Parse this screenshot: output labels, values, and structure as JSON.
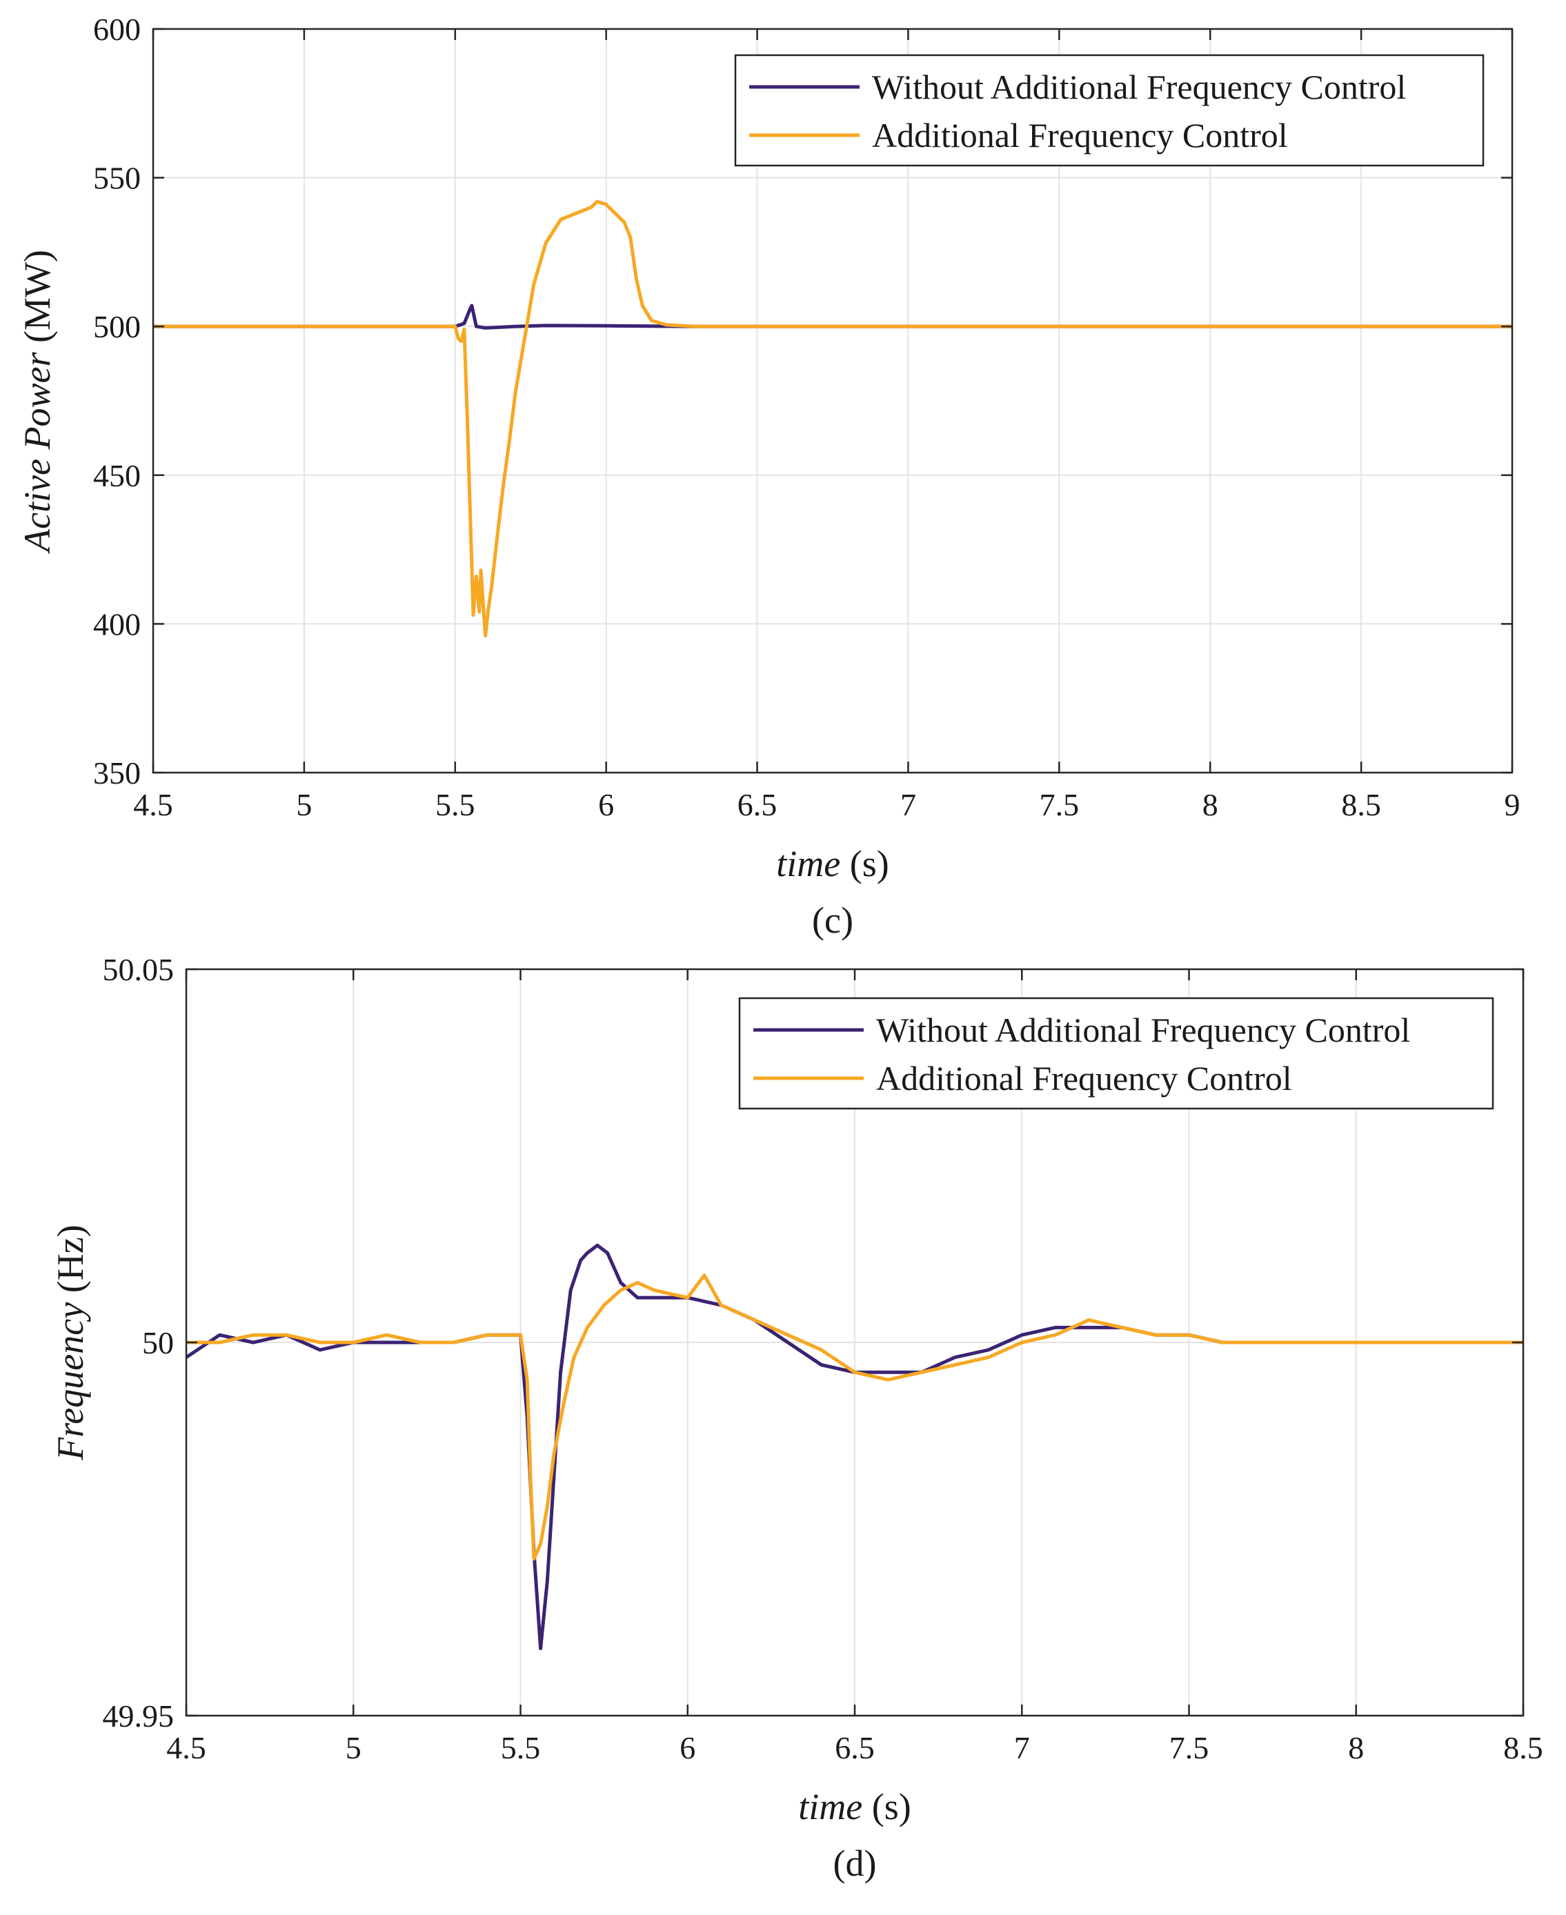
{
  "colors": {
    "series_without": "#3b2373",
    "series_with": "#f7a823",
    "axes": "#262626",
    "grid": "#e3e3e3"
  },
  "chart_data": [
    {
      "type": "line",
      "xlabel_italic": "time",
      "xlabel_unit": "(s)",
      "ylabel_italic": "Active Power",
      "ylabel_unit": "(MW)",
      "caption": "(c)",
      "xlim": [
        4.5,
        9
      ],
      "ylim": [
        350,
        600
      ],
      "xticks": [
        4.5,
        5,
        5.5,
        6,
        6.5,
        7,
        7.5,
        8,
        8.5,
        9
      ],
      "xtick_labels": [
        "4.5",
        "5",
        "5.5",
        "6",
        "6.5",
        "7",
        "7.5",
        "8",
        "8.5",
        "9"
      ],
      "yticks": [
        350,
        400,
        450,
        500,
        550,
        600
      ],
      "ytick_labels": [
        "350",
        "400",
        "450",
        "500",
        "550",
        "600"
      ],
      "grid": true,
      "legend_position": "top-right",
      "series": [
        {
          "name": "Without Additional Frequency Control",
          "color_key": "series_without",
          "x": [
            4.5,
            5.0,
            5.5,
            5.53,
            5.55,
            5.555,
            5.57,
            5.6,
            5.7,
            5.8,
            6.0,
            6.3,
            7.0,
            8.0,
            9.0
          ],
          "y": [
            500,
            500,
            500,
            501,
            506,
            507,
            500,
            499.5,
            500,
            500.3,
            500.2,
            500,
            500,
            500,
            500
          ]
        },
        {
          "name": "Additional Frequency Control",
          "color_key": "series_with",
          "x": [
            4.5,
            5.0,
            5.5,
            5.51,
            5.52,
            5.53,
            5.54,
            5.56,
            5.57,
            5.58,
            5.585,
            5.6,
            5.61,
            5.62,
            5.64,
            5.66,
            5.68,
            5.7,
            5.73,
            5.76,
            5.8,
            5.85,
            5.9,
            5.95,
            5.97,
            6.0,
            6.03,
            6.06,
            6.08,
            6.1,
            6.12,
            6.15,
            6.2,
            6.3,
            7.0,
            8.0,
            9.0
          ],
          "y": [
            500,
            500,
            500,
            496,
            495,
            499,
            470,
            403,
            416,
            404,
            418,
            396,
            405,
            412,
            430,
            447,
            462,
            478,
            496,
            514,
            528,
            536,
            538,
            540,
            542,
            541,
            538,
            535,
            530,
            516,
            507,
            502,
            500.5,
            500,
            500,
            500,
            500
          ]
        }
      ]
    },
    {
      "type": "line",
      "xlabel_italic": "time",
      "xlabel_unit": "(s)",
      "ylabel_italic": "Frequency",
      "ylabel_unit": "(Hz)",
      "caption": "(d)",
      "xlim": [
        4.5,
        8.5
      ],
      "ylim": [
        49.95,
        50.05
      ],
      "xticks": [
        4.5,
        5,
        5.5,
        6,
        6.5,
        7,
        7.5,
        8,
        8.5
      ],
      "xtick_labels": [
        "4.5",
        "5",
        "5.5",
        "6",
        "6.5",
        "7",
        "7.5",
        "8",
        "8.5"
      ],
      "yticks": [
        49.95,
        50,
        50.05
      ],
      "ytick_labels": [
        "49.95",
        "50",
        "50.05"
      ],
      "grid": true,
      "legend_position": "top-right",
      "series": [
        {
          "name": "Without Additional Frequency Control",
          "color_key": "series_without",
          "x": [
            4.5,
            4.6,
            4.7,
            4.8,
            4.9,
            5.0,
            5.1,
            5.2,
            5.3,
            5.4,
            5.5,
            5.52,
            5.54,
            5.56,
            5.58,
            5.6,
            5.62,
            5.65,
            5.68,
            5.7,
            5.73,
            5.76,
            5.8,
            5.85,
            5.9,
            6.0,
            6.1,
            6.2,
            6.3,
            6.4,
            6.5,
            6.6,
            6.7,
            6.8,
            6.9,
            7.0,
            7.1,
            7.2,
            7.3,
            7.4,
            7.5,
            7.6,
            7.8,
            8.0,
            8.2,
            8.4,
            8.5
          ],
          "y": [
            49.998,
            50.001,
            50.0,
            50.001,
            49.999,
            50.0,
            50.0,
            50.0,
            50.0,
            50.001,
            50.001,
            49.99,
            49.972,
            49.959,
            49.968,
            49.982,
            49.996,
            50.007,
            50.011,
            50.012,
            50.013,
            50.012,
            50.008,
            50.006,
            50.006,
            50.006,
            50.005,
            50.003,
            50.0,
            49.997,
            49.996,
            49.996,
            49.996,
            49.998,
            49.999,
            50.001,
            50.002,
            50.002,
            50.002,
            50.001,
            50.001,
            50.0,
            50.0,
            50.0,
            50.0,
            50.0,
            50.0
          ]
        },
        {
          "name": "Additional Frequency Control",
          "color_key": "series_with",
          "x": [
            4.5,
            4.6,
            4.7,
            4.8,
            4.9,
            5.0,
            5.1,
            5.2,
            5.3,
            5.4,
            5.5,
            5.52,
            5.53,
            5.54,
            5.56,
            5.58,
            5.6,
            5.63,
            5.66,
            5.7,
            5.75,
            5.8,
            5.85,
            5.9,
            6.0,
            6.05,
            6.1,
            6.2,
            6.3,
            6.4,
            6.5,
            6.6,
            6.7,
            6.8,
            6.9,
            7.0,
            7.1,
            7.2,
            7.3,
            7.4,
            7.5,
            7.6,
            7.8,
            8.0,
            8.2,
            8.4,
            8.5
          ],
          "y": [
            50.0,
            50.0,
            50.001,
            50.001,
            50.0,
            50.0,
            50.001,
            50.0,
            50.0,
            50.001,
            50.001,
            49.995,
            49.982,
            49.971,
            49.973,
            49.978,
            49.985,
            49.992,
            49.998,
            50.002,
            50.005,
            50.007,
            50.008,
            50.007,
            50.006,
            50.009,
            50.005,
            50.003,
            50.001,
            49.999,
            49.996,
            49.995,
            49.996,
            49.997,
            49.998,
            50.0,
            50.001,
            50.003,
            50.002,
            50.001,
            50.001,
            50.0,
            50.0,
            50.0,
            50.0,
            50.0,
            50.0
          ]
        }
      ]
    }
  ]
}
